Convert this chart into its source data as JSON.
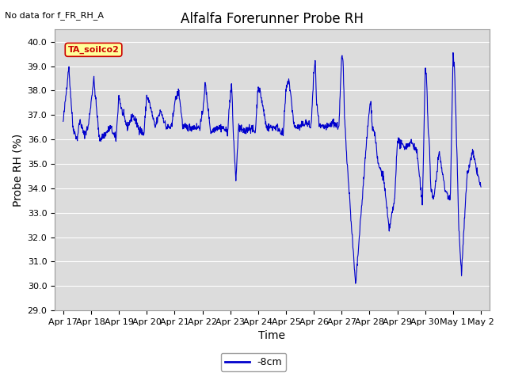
{
  "title": "Alfalfa Forerunner Probe RH",
  "no_data_text": "No data for f_FR_RH_A",
  "xlabel": "Time",
  "ylabel": "Probe RH (%)",
  "legend_label": "-8cm",
  "legend_color": "#0000cc",
  "line_color": "#0000cc",
  "background_color": "#ffffff",
  "plot_bg_color": "#dcdcdc",
  "ylim": [
    29.0,
    40.5
  ],
  "yticks": [
    29.0,
    30.0,
    31.0,
    32.0,
    33.0,
    34.0,
    35.0,
    36.0,
    37.0,
    38.0,
    39.0,
    40.0
  ],
  "xtick_labels": [
    "Apr 17",
    "Apr 18",
    "Apr 19",
    "Apr 20",
    "Apr 21",
    "Apr 22",
    "Apr 23",
    "Apr 24",
    "Apr 25",
    "Apr 26",
    "Apr 27",
    "Apr 28",
    "Apr 29",
    "Apr 30",
    "May 1",
    "May 2"
  ],
  "grid_color": "#ffffff",
  "tag_label": "TA_soilco2",
  "tag_bg": "#ffff99",
  "tag_border": "#cc0000",
  "tag_text_color": "#cc0000",
  "title_fontsize": 12,
  "axis_label_fontsize": 10,
  "tick_fontsize": 8,
  "no_data_fontsize": 8,
  "tag_fontsize": 8,
  "legend_fontsize": 9
}
